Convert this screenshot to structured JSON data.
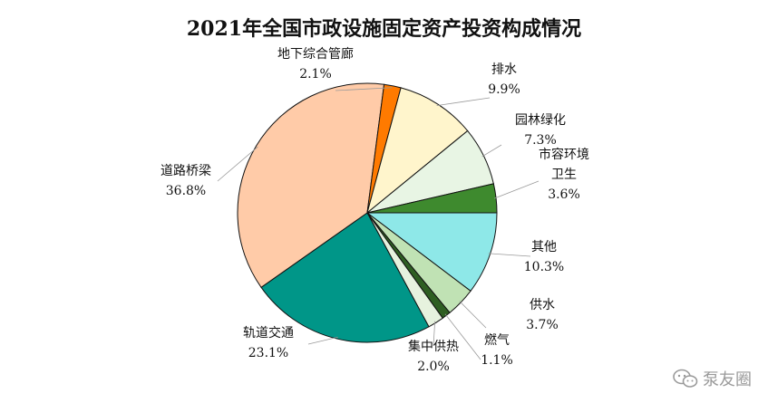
{
  "chart_data": {
    "type": "pie",
    "title": "2021年全国市政设施固定资产投资构成情况",
    "slices": [
      {
        "label": "其他",
        "value": 10.3,
        "display": "10.3%",
        "color": "#8EE8E8"
      },
      {
        "label": "供水",
        "value": 3.7,
        "display": "3.7%",
        "color": "#C0E2B4"
      },
      {
        "label": "燃气",
        "value": 1.1,
        "display": "1.1%",
        "color": "#2E5E22"
      },
      {
        "label": "集中供热",
        "value": 2.0,
        "display": "2.0%",
        "color": "#E6F2DE"
      },
      {
        "label": "轨道交通",
        "value": 23.1,
        "display": "23.1%",
        "color": "#009688"
      },
      {
        "label": "道路桥梁",
        "value": 36.8,
        "display": "36.8%",
        "color": "#FFCBA8"
      },
      {
        "label": "地下综合管廊",
        "value": 2.1,
        "display": "2.1%",
        "color": "#FF7A00"
      },
      {
        "label": "排水",
        "value": 9.9,
        "display": "9.9%",
        "color": "#FFF5CC"
      },
      {
        "label": "园林绿化",
        "value": 7.3,
        "display": "7.3%",
        "color": "#E8F5E4"
      },
      {
        "label": "市容环境卫生",
        "label_lines": [
          "市容环境",
          "卫生"
        ],
        "value": 3.6,
        "display": "3.6%",
        "color": "#3E8A2E"
      }
    ],
    "start_angle_deg": 0,
    "direction": "clockwise"
  },
  "watermark": {
    "text": "泵友圈",
    "icon": "wechat-bubbles-icon"
  }
}
